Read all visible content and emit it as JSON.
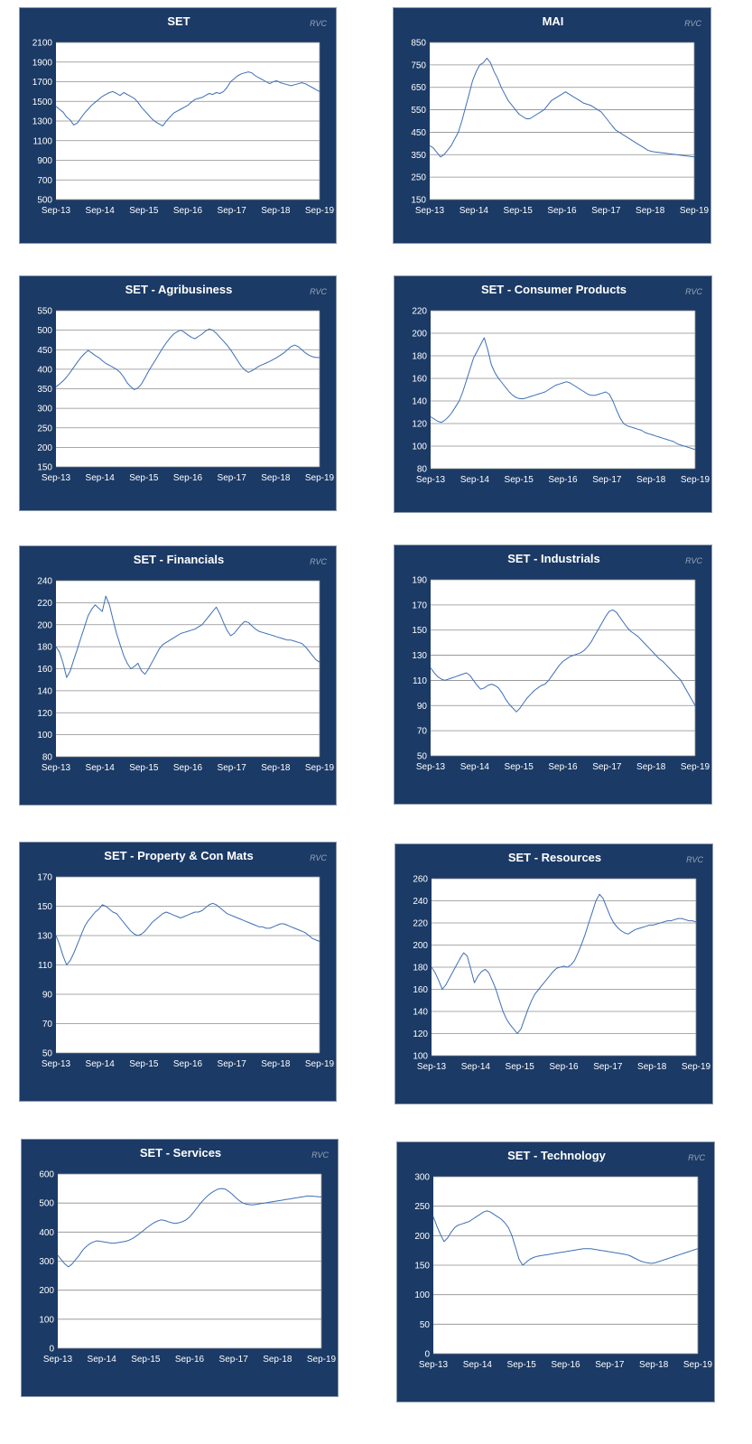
{
  "watermark": "RVC",
  "colors": {
    "panel_background": "#1b3a66",
    "plot_background": "#ffffff",
    "series_line": "#3d6fb4",
    "gridline": "#8c8c8c",
    "text": "#ffffff"
  },
  "chart_data": [
    {
      "type": "line",
      "title": "SET",
      "x_ticks": [
        "Sep-13",
        "Sep-14",
        "Sep-15",
        "Sep-16",
        "Sep-17",
        "Sep-18",
        "Sep-19"
      ],
      "y_ticks": [
        500,
        700,
        900,
        1100,
        1300,
        1500,
        1700,
        1900,
        2100
      ],
      "ylim": [
        500,
        2100
      ],
      "grid": "horizontal",
      "series": [
        {
          "values": [
            1450,
            1420,
            1390,
            1340,
            1310,
            1260,
            1280,
            1330,
            1380,
            1420,
            1460,
            1490,
            1520,
            1550,
            1570,
            1590,
            1600,
            1580,
            1560,
            1590,
            1570,
            1550,
            1530,
            1490,
            1440,
            1400,
            1360,
            1320,
            1290,
            1270,
            1250,
            1300,
            1340,
            1380,
            1400,
            1420,
            1440,
            1460,
            1490,
            1520,
            1530,
            1540,
            1560,
            1580,
            1570,
            1590,
            1580,
            1600,
            1640,
            1700,
            1730,
            1760,
            1780,
            1790,
            1800,
            1790,
            1760,
            1740,
            1720,
            1700,
            1680,
            1700,
            1710,
            1690,
            1680,
            1670,
            1660,
            1670,
            1680,
            1690,
            1680,
            1660,
            1640,
            1620,
            1600
          ]
        }
      ]
    },
    {
      "type": "line",
      "title": "MAI",
      "x_ticks": [
        "Sep-13",
        "Sep-14",
        "Sep-15",
        "Sep-16",
        "Sep-17",
        "Sep-18",
        "Sep-19"
      ],
      "y_ticks": [
        150,
        250,
        350,
        450,
        550,
        650,
        750,
        850
      ],
      "ylim": [
        150,
        850
      ],
      "grid": "horizontal",
      "series": [
        {
          "values": [
            390,
            380,
            360,
            340,
            350,
            370,
            390,
            420,
            450,
            500,
            560,
            620,
            680,
            720,
            750,
            760,
            780,
            760,
            720,
            690,
            650,
            620,
            590,
            570,
            550,
            530,
            520,
            510,
            510,
            520,
            530,
            540,
            550,
            570,
            590,
            600,
            610,
            620,
            630,
            620,
            610,
            600,
            590,
            580,
            575,
            570,
            560,
            550,
            540,
            520,
            500,
            480,
            460,
            450,
            440,
            430,
            420,
            410,
            400,
            390,
            380,
            370,
            365,
            362,
            360,
            358,
            356,
            354,
            352,
            350,
            348,
            346,
            344,
            342,
            340
          ]
        }
      ]
    },
    {
      "type": "line",
      "title": "SET - Agribusiness",
      "x_ticks": [
        "Sep-13",
        "Sep-14",
        "Sep-15",
        "Sep-16",
        "Sep-17",
        "Sep-18",
        "Sep-19"
      ],
      "y_ticks": [
        150,
        200,
        250,
        300,
        350,
        400,
        450,
        500,
        550
      ],
      "ylim": [
        150,
        550
      ],
      "grid": "horizontal",
      "series": [
        {
          "values": [
            355,
            362,
            370,
            380,
            392,
            405,
            418,
            430,
            440,
            448,
            442,
            435,
            430,
            422,
            415,
            410,
            405,
            400,
            392,
            380,
            365,
            355,
            348,
            352,
            362,
            378,
            395,
            410,
            425,
            440,
            455,
            468,
            480,
            490,
            496,
            500,
            495,
            488,
            482,
            478,
            484,
            490,
            498,
            503,
            500,
            492,
            482,
            472,
            462,
            450,
            436,
            422,
            408,
            398,
            392,
            396,
            402,
            408,
            412,
            416,
            420,
            425,
            430,
            436,
            442,
            450,
            458,
            462,
            458,
            450,
            442,
            436,
            432,
            430,
            430
          ]
        }
      ]
    },
    {
      "type": "line",
      "title": "SET - Consumer Products",
      "x_ticks": [
        "Sep-13",
        "Sep-14",
        "Sep-15",
        "Sep-16",
        "Sep-17",
        "Sep-18",
        "Sep-19"
      ],
      "y_ticks": [
        80,
        100,
        120,
        140,
        160,
        180,
        200,
        220
      ],
      "ylim": [
        80,
        220
      ],
      "grid": "horizontal",
      "series": [
        {
          "values": [
            126,
            124,
            122,
            121,
            123,
            126,
            130,
            135,
            140,
            148,
            158,
            168,
            178,
            184,
            190,
            196,
            185,
            172,
            165,
            160,
            156,
            152,
            148,
            145,
            143,
            142,
            142,
            143,
            144,
            145,
            146,
            147,
            148,
            150,
            152,
            154,
            155,
            156,
            157,
            156,
            154,
            152,
            150,
            148,
            146,
            145,
            145,
            146,
            147,
            148,
            146,
            140,
            132,
            125,
            120,
            118,
            117,
            116,
            115,
            114,
            112,
            111,
            110,
            109,
            108,
            107,
            106,
            105,
            104,
            102,
            101,
            100,
            99,
            98,
            97
          ]
        }
      ]
    },
    {
      "type": "line",
      "title": "SET - Financials",
      "x_ticks": [
        "Sep-13",
        "Sep-14",
        "Sep-15",
        "Sep-16",
        "Sep-17",
        "Sep-18",
        "Sep-19"
      ],
      "y_ticks": [
        80,
        100,
        120,
        140,
        160,
        180,
        200,
        220,
        240
      ],
      "ylim": [
        80,
        240
      ],
      "grid": "horizontal",
      "series": [
        {
          "values": [
            180,
            175,
            165,
            152,
            158,
            168,
            178,
            188,
            198,
            208,
            214,
            218,
            215,
            212,
            226,
            218,
            205,
            192,
            182,
            172,
            165,
            160,
            162,
            165,
            158,
            155,
            160,
            166,
            172,
            178,
            182,
            184,
            186,
            188,
            190,
            192,
            193,
            194,
            195,
            196,
            198,
            200,
            204,
            208,
            212,
            216,
            210,
            202,
            195,
            190,
            192,
            196,
            200,
            203,
            202,
            199,
            196,
            194,
            193,
            192,
            191,
            190,
            189,
            188,
            187,
            186,
            186,
            185,
            184,
            183,
            180,
            176,
            172,
            168,
            166
          ]
        }
      ]
    },
    {
      "type": "line",
      "title": "SET - Industrials",
      "x_ticks": [
        "Sep-13",
        "Sep-14",
        "Sep-15",
        "Sep-16",
        "Sep-17",
        "Sep-18",
        "Sep-19"
      ],
      "y_ticks": [
        50,
        70,
        90,
        110,
        130,
        150,
        170,
        190
      ],
      "ylim": [
        50,
        190
      ],
      "grid": "horizontal",
      "series": [
        {
          "values": [
            120,
            116,
            113,
            111,
            110,
            111,
            112,
            113,
            114,
            115,
            116,
            114,
            110,
            106,
            103,
            104,
            106,
            107,
            106,
            104,
            100,
            95,
            91,
            88,
            85,
            88,
            92,
            96,
            99,
            102,
            104,
            106,
            107,
            110,
            114,
            118,
            122,
            125,
            127,
            129,
            130,
            131,
            132,
            134,
            137,
            141,
            146,
            151,
            156,
            161,
            165,
            166,
            164,
            160,
            156,
            152,
            149,
            147,
            145,
            142,
            139,
            136,
            133,
            130,
            127,
            125,
            122,
            119,
            116,
            113,
            110,
            105,
            100,
            95,
            90
          ]
        }
      ]
    },
    {
      "type": "line",
      "title": "SET - Property & Con Mats",
      "x_ticks": [
        "Sep-13",
        "Sep-14",
        "Sep-15",
        "Sep-16",
        "Sep-17",
        "Sep-18",
        "Sep-19"
      ],
      "y_ticks": [
        50,
        70,
        90,
        110,
        130,
        150,
        170
      ],
      "ylim": [
        50,
        170
      ],
      "grid": "horizontal",
      "series": [
        {
          "values": [
            130,
            124,
            116,
            110,
            113,
            118,
            124,
            130,
            136,
            140,
            143,
            146,
            148,
            151,
            150,
            148,
            146,
            145,
            142,
            139,
            136,
            133,
            131,
            130,
            131,
            133,
            136,
            139,
            141,
            143,
            145,
            146,
            145,
            144,
            143,
            142,
            143,
            144,
            145,
            146,
            146,
            147,
            149,
            151,
            152,
            151,
            149,
            147,
            145,
            144,
            143,
            142,
            141,
            140,
            139,
            138,
            137,
            136,
            136,
            135,
            135,
            136,
            137,
            138,
            138,
            137,
            136,
            135,
            134,
            133,
            132,
            130,
            128,
            127,
            126
          ]
        }
      ]
    },
    {
      "type": "line",
      "title": "SET - Resources",
      "x_ticks": [
        "Sep-13",
        "Sep-14",
        "Sep-15",
        "Sep-16",
        "Sep-17",
        "Sep-18",
        "Sep-19"
      ],
      "y_ticks": [
        100,
        120,
        140,
        160,
        180,
        200,
        220,
        240,
        260
      ],
      "ylim": [
        100,
        260
      ],
      "grid": "horizontal",
      "series": [
        {
          "values": [
            180,
            175,
            168,
            160,
            164,
            170,
            176,
            182,
            188,
            193,
            190,
            178,
            166,
            172,
            176,
            178,
            175,
            168,
            160,
            150,
            140,
            133,
            128,
            124,
            120,
            124,
            133,
            142,
            150,
            156,
            160,
            164,
            168,
            172,
            176,
            179,
            180,
            181,
            180,
            182,
            186,
            193,
            201,
            210,
            220,
            230,
            240,
            246,
            242,
            234,
            226,
            220,
            216,
            213,
            211,
            210,
            212,
            214,
            215,
            216,
            217,
            218,
            218,
            219,
            220,
            221,
            222,
            222,
            223,
            224,
            224,
            223,
            222,
            222,
            221
          ]
        }
      ]
    },
    {
      "type": "line",
      "title": "SET - Services",
      "x_ticks": [
        "Sep-13",
        "Sep-14",
        "Sep-15",
        "Sep-16",
        "Sep-17",
        "Sep-18",
        "Sep-19"
      ],
      "y_ticks": [
        0,
        100,
        200,
        300,
        400,
        500,
        600
      ],
      "ylim": [
        0,
        600
      ],
      "grid": "horizontal",
      "series": [
        {
          "values": [
            320,
            305,
            290,
            280,
            290,
            305,
            320,
            338,
            350,
            360,
            366,
            370,
            368,
            366,
            364,
            362,
            362,
            364,
            366,
            368,
            372,
            378,
            386,
            395,
            405,
            415,
            424,
            432,
            438,
            442,
            440,
            436,
            432,
            430,
            432,
            436,
            442,
            452,
            466,
            482,
            498,
            512,
            524,
            534,
            542,
            548,
            550,
            548,
            540,
            530,
            518,
            508,
            500,
            496,
            494,
            494,
            496,
            498,
            500,
            502,
            504,
            506,
            508,
            510,
            512,
            514,
            516,
            518,
            520,
            522,
            524,
            524,
            523,
            522,
            521
          ]
        }
      ]
    },
    {
      "type": "line",
      "title": "SET - Technology",
      "x_ticks": [
        "Sep-13",
        "Sep-14",
        "Sep-15",
        "Sep-16",
        "Sep-17",
        "Sep-18",
        "Sep-19"
      ],
      "y_ticks": [
        0,
        50,
        100,
        150,
        200,
        250,
        300
      ],
      "ylim": [
        0,
        300
      ],
      "grid": "horizontal",
      "series": [
        {
          "values": [
            232,
            216,
            202,
            190,
            196,
            206,
            214,
            218,
            220,
            222,
            224,
            228,
            232,
            236,
            240,
            242,
            240,
            236,
            232,
            228,
            222,
            214,
            200,
            180,
            160,
            150,
            155,
            160,
            163,
            165,
            166,
            167,
            168,
            169,
            170,
            171,
            172,
            173,
            174,
            175,
            176,
            177,
            178,
            178,
            178,
            177,
            176,
            175,
            174,
            173,
            172,
            171,
            170,
            169,
            168,
            166,
            163,
            160,
            157,
            155,
            154,
            153,
            154,
            156,
            158,
            160,
            162,
            164,
            166,
            168,
            170,
            172,
            174,
            176,
            178
          ]
        }
      ]
    }
  ]
}
